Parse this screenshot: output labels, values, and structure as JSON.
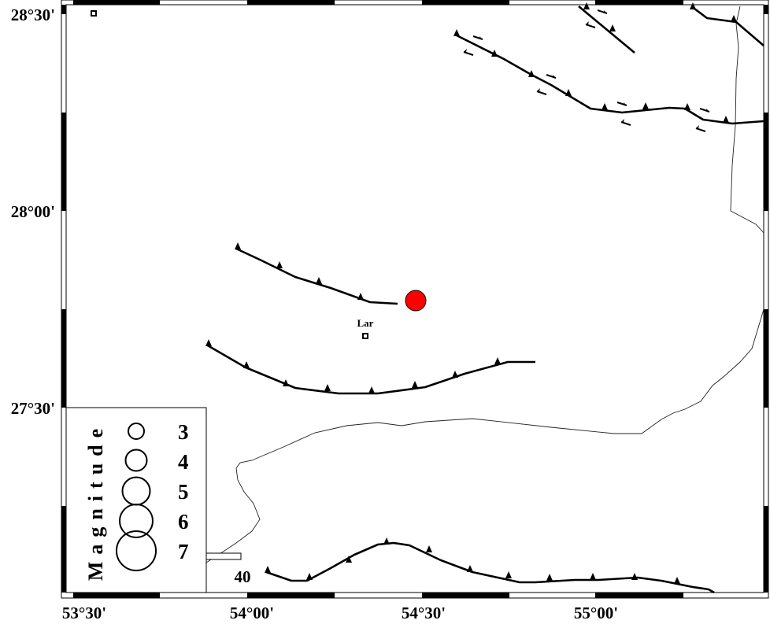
{
  "map": {
    "lon_labels": [
      "53°30'",
      "54°00'",
      "54°30'",
      "55°00'"
    ],
    "lat_labels": [
      "28°30'",
      "28°00'",
      "27°30'"
    ],
    "cities": [
      {
        "name": "Lar"
      }
    ],
    "epicenter": {
      "color": "#ff0000"
    },
    "scale_bar": {
      "label": "40"
    }
  },
  "legend": {
    "title": "Magnitude",
    "items": [
      {
        "label": "3"
      },
      {
        "label": "4"
      },
      {
        "label": "5"
      },
      {
        "label": "6"
      },
      {
        "label": "7"
      }
    ]
  }
}
